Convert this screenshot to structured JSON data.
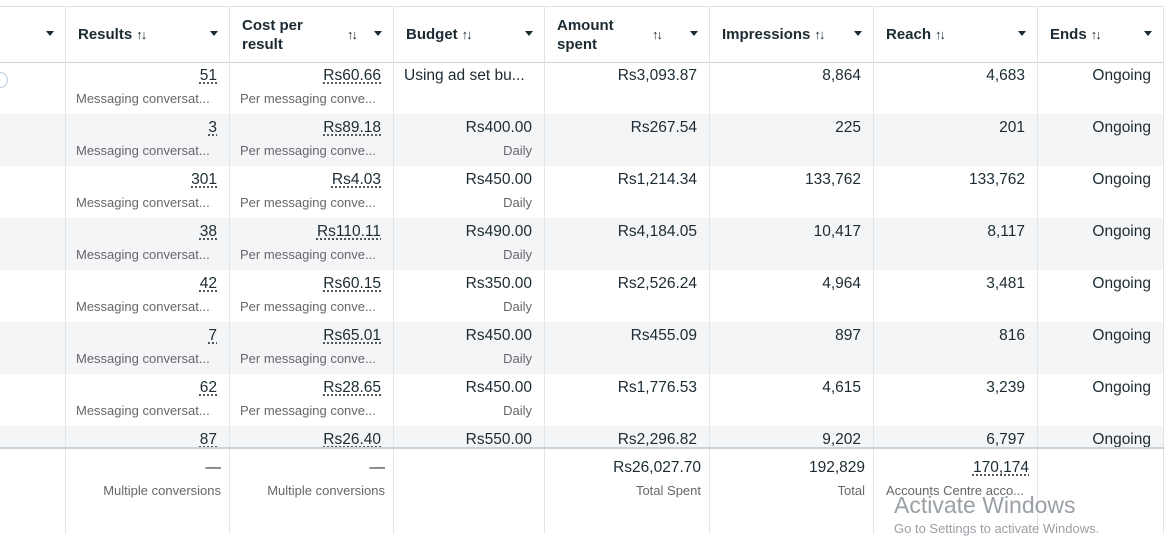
{
  "columns": [
    {
      "key": "select",
      "label": ""
    },
    {
      "key": "results",
      "label": "Results"
    },
    {
      "key": "cost",
      "label": "Cost per result"
    },
    {
      "key": "budget",
      "label": "Budget"
    },
    {
      "key": "amount",
      "label": "Amount spent"
    },
    {
      "key": "impressions",
      "label": "Impressions"
    },
    {
      "key": "reach",
      "label": "Reach"
    },
    {
      "key": "ends",
      "label": "Ends"
    }
  ],
  "sort_glyph": "↑↓",
  "rows": [
    {
      "results": "51",
      "results_sub": "Messaging conversat...",
      "cost": "Rs60.66",
      "cost_sub": "Per messaging conve...",
      "budget": "Using ad set bu...",
      "budget_sub": "",
      "amount": "Rs3,093.87",
      "impressions": "8,864",
      "reach": "4,683",
      "ends": "Ongoing"
    },
    {
      "results": "3",
      "results_sub": "Messaging conversat...",
      "cost": "Rs89.18",
      "cost_sub": "Per messaging conve...",
      "budget": "Rs400.00",
      "budget_sub": "Daily",
      "amount": "Rs267.54",
      "impressions": "225",
      "reach": "201",
      "ends": "Ongoing"
    },
    {
      "results": "301",
      "results_sub": "Messaging conversat...",
      "cost": "Rs4.03",
      "cost_sub": "Per messaging conve...",
      "budget": "Rs450.00",
      "budget_sub": "Daily",
      "amount": "Rs1,214.34",
      "impressions": "133,762",
      "reach": "133,762",
      "ends": "Ongoing"
    },
    {
      "results": "38",
      "results_sub": "Messaging conversat...",
      "cost": "Rs110.11",
      "cost_sub": "Per messaging conve...",
      "budget": "Rs490.00",
      "budget_sub": "Daily",
      "amount": "Rs4,184.05",
      "impressions": "10,417",
      "reach": "8,117",
      "ends": "Ongoing"
    },
    {
      "results": "42",
      "results_sub": "Messaging conversat...",
      "cost": "Rs60.15",
      "cost_sub": "Per messaging conve...",
      "budget": "Rs350.00",
      "budget_sub": "Daily",
      "amount": "Rs2,526.24",
      "impressions": "4,964",
      "reach": "3,481",
      "ends": "Ongoing"
    },
    {
      "results": "7",
      "results_sub": "Messaging conversat...",
      "cost": "Rs65.01",
      "cost_sub": "Per messaging conve...",
      "budget": "Rs450.00",
      "budget_sub": "Daily",
      "amount": "Rs455.09",
      "impressions": "897",
      "reach": "816",
      "ends": "Ongoing"
    },
    {
      "results": "62",
      "results_sub": "Messaging conversat...",
      "cost": "Rs28.65",
      "cost_sub": "Per messaging conve...",
      "budget": "Rs450.00",
      "budget_sub": "Daily",
      "amount": "Rs1,776.53",
      "impressions": "4,615",
      "reach": "3,239",
      "ends": "Ongoing"
    },
    {
      "results": "87",
      "results_sub": "",
      "cost": "Rs26.40",
      "cost_sub": "",
      "budget": "Rs550.00",
      "budget_sub": "",
      "amount": "Rs2,296.82",
      "impressions": "9,202",
      "reach": "6,797",
      "ends": "Ongoing"
    }
  ],
  "totals": {
    "results": "—",
    "results_sub": "Multiple conversions",
    "cost": "—",
    "cost_sub": "Multiple conversions",
    "amount": "Rs26,027.70",
    "amount_sub": "Total Spent",
    "impressions": "192,829",
    "impressions_sub": "Total",
    "reach": "170,174",
    "reach_sub": "Accounts Centre acco..."
  },
  "watermark": {
    "title": "Activate Windows",
    "subtitle": "Go to Settings to activate Windows."
  }
}
